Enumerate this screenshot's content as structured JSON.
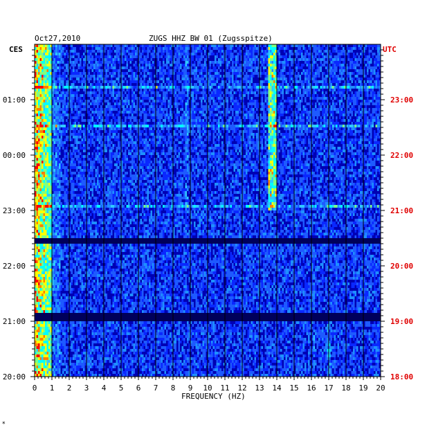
{
  "header": {
    "date": "Oct27,2010",
    "station": "ZUGS HHZ BW 01 (Zugsspitze)"
  },
  "left_axis": {
    "zone": "CES",
    "ticks": [
      "01:00",
      "00:00",
      "23:00",
      "22:00",
      "21:00",
      "20:00"
    ]
  },
  "right_axis": {
    "zone": "UTC",
    "ticks": [
      "23:00",
      "22:00",
      "21:00",
      "20:00",
      "19:00",
      "18:00"
    ]
  },
  "chart_data": {
    "type": "heatmap",
    "title": "ZUGS HHZ BW 01 (Zugsspitze)",
    "date": "Oct27,2010",
    "xlabel": "FREQUENCY (HZ)",
    "xlim": [
      0,
      20
    ],
    "x_ticks": [
      "0",
      "1",
      "2",
      "3",
      "4",
      "5",
      "6",
      "7",
      "8",
      "9",
      "10",
      "11",
      "12",
      "13",
      "14",
      "15",
      "16",
      "17",
      "18",
      "19",
      "20"
    ],
    "y_left_zone": "CES",
    "y_right_zone": "UTC",
    "y_left_ticks": [
      "01:00",
      "00:00",
      "23:00",
      "22:00",
      "21:00",
      "20:00"
    ],
    "y_right_ticks": [
      "23:00",
      "22:00",
      "21:00",
      "20:00",
      "19:00",
      "18:00"
    ],
    "colors": {
      "background_low": "#0000b4",
      "mid": "#1e90ff",
      "high": "#00ffff",
      "peak": "#ff0000",
      "right_axis_text": "#e00000"
    }
  },
  "footer_mark": "*"
}
